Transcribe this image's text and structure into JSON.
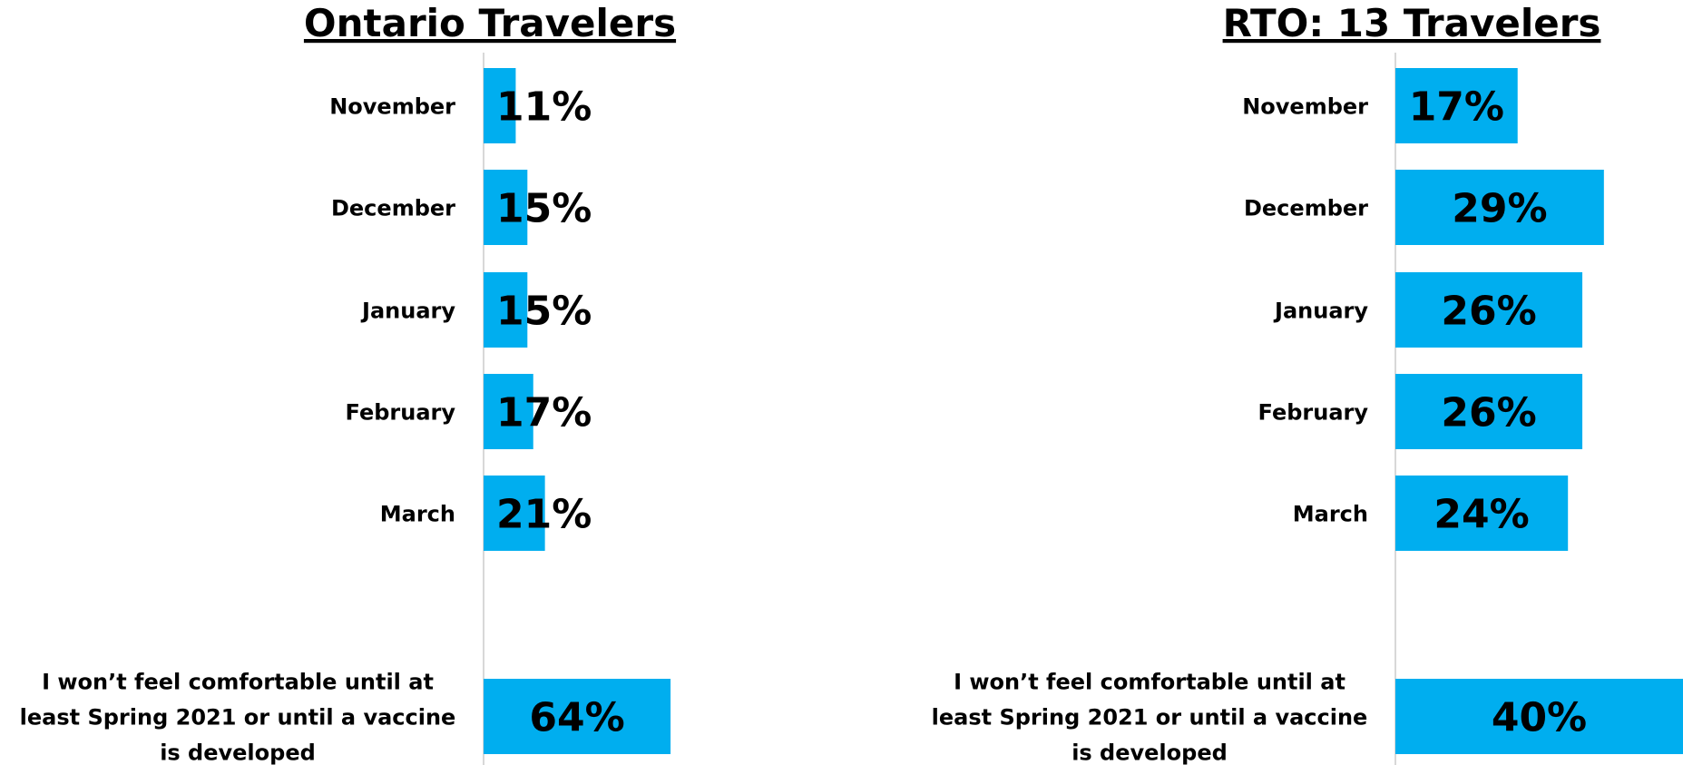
{
  "chart_data": [
    {
      "type": "bar",
      "orientation": "horizontal",
      "title": "Ontario Travelers",
      "categories": [
        "November",
        "December",
        "January",
        "February",
        "March",
        "I won’t feel comfortable until at least Spring 2021 or until a vaccine is developed"
      ],
      "category_lines": [
        [
          "November"
        ],
        [
          "December"
        ],
        [
          "January"
        ],
        [
          "February"
        ],
        [
          "March"
        ],
        [
          "I won’t feel comfortable until at",
          "least Spring 2021 or until a vaccine",
          "is developed"
        ]
      ],
      "values": [
        11,
        15,
        15,
        17,
        21,
        64
      ],
      "value_labels": [
        "11%",
        "15%",
        "15%",
        "17%",
        "21%",
        "64%"
      ],
      "unit": "%",
      "xlim": [
        0,
        100
      ],
      "grid": false,
      "legend": "none",
      "bar_color": "#00AEEF"
    },
    {
      "type": "bar",
      "orientation": "horizontal",
      "title": "RTO:  13 Travelers",
      "categories": [
        "November",
        "December",
        "January",
        "February",
        "March",
        "I won’t feel comfortable until at least Spring 2021 or until a vaccine is developed"
      ],
      "category_lines": [
        [
          "November"
        ],
        [
          "December"
        ],
        [
          "January"
        ],
        [
          "February"
        ],
        [
          "March"
        ],
        [
          "I won’t feel comfortable until at",
          "least Spring 2021 or until a vaccine",
          "is developed"
        ]
      ],
      "values": [
        17,
        29,
        26,
        26,
        24,
        40
      ],
      "value_labels": [
        "17%",
        "29%",
        "26%",
        "26%",
        "24%",
        "40%"
      ],
      "unit": "%",
      "xlim": [
        0,
        40
      ],
      "grid": false,
      "legend": "none",
      "bar_color": "#00AEEF"
    }
  ]
}
